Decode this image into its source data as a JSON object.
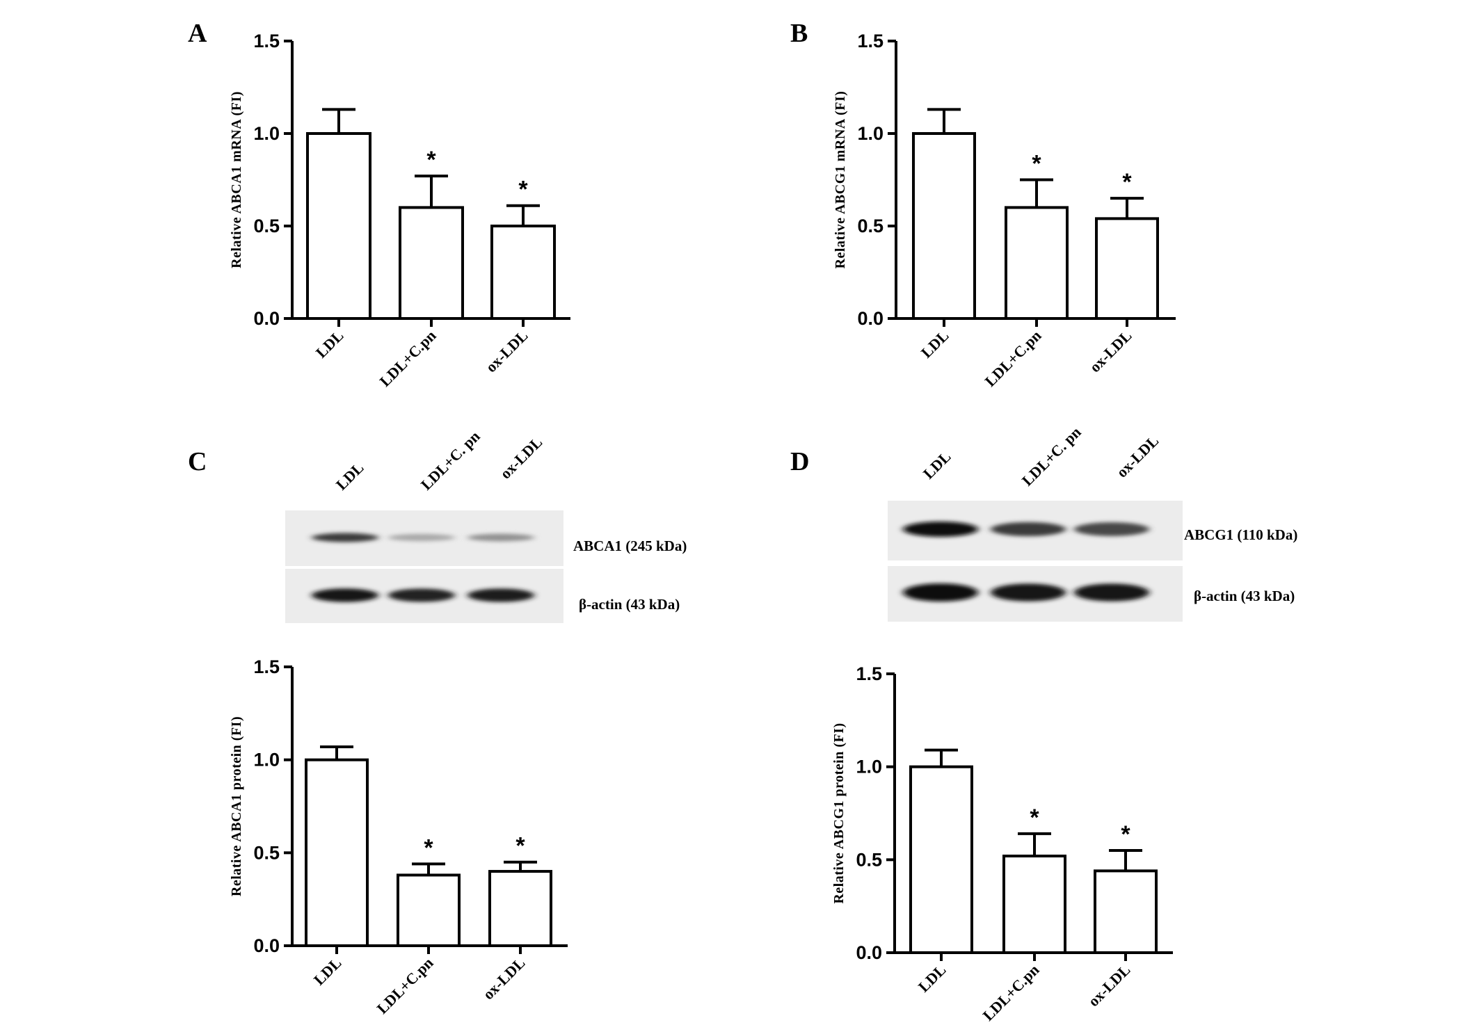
{
  "panels": [
    {
      "letter": "A"
    },
    {
      "letter": "B"
    },
    {
      "letter": "C"
    },
    {
      "letter": "D"
    }
  ],
  "chart_data": [
    {
      "panel": "A",
      "type": "bar",
      "title": "",
      "ylabel": "Relative ABCA1 mRNA (FI)",
      "xlabel": "",
      "ylim": [
        0,
        1.5
      ],
      "yticks": [
        "0.0",
        "0.5",
        "1.0",
        "1.5"
      ],
      "categories": [
        "LDL",
        "LDL+C.pn",
        "ox-LDL"
      ],
      "values": [
        1.0,
        0.6,
        0.5
      ],
      "errors": [
        0.13,
        0.17,
        0.11
      ],
      "significance": [
        "",
        "*",
        "*"
      ]
    },
    {
      "panel": "B",
      "type": "bar",
      "title": "",
      "ylabel": "Relative ABCG1 mRNA (FI)",
      "xlabel": "",
      "ylim": [
        0,
        1.5
      ],
      "yticks": [
        "0.0",
        "0.5",
        "1.0",
        "1.5"
      ],
      "categories": [
        "LDL",
        "LDL+C.pn",
        "ox-LDL"
      ],
      "values": [
        1.0,
        0.6,
        0.54
      ],
      "errors": [
        0.13,
        0.15,
        0.11
      ],
      "significance": [
        "",
        "*",
        "*"
      ]
    },
    {
      "panel": "C",
      "type": "bar",
      "title": "",
      "ylabel": "Relative ABCA1  protein (FI)",
      "xlabel": "",
      "ylim": [
        0,
        1.5
      ],
      "yticks": [
        "0.0",
        "0.5",
        "1.0",
        "1.5"
      ],
      "categories": [
        "LDL",
        "LDL+C.pn",
        "ox-LDL"
      ],
      "values": [
        1.0,
        0.38,
        0.4
      ],
      "errors": [
        0.07,
        0.06,
        0.05
      ],
      "significance": [
        "",
        "*",
        "*"
      ]
    },
    {
      "panel": "D",
      "type": "bar",
      "title": "",
      "ylabel": "Relative ABCG1  protein (FI)",
      "xlabel": "",
      "ylim": [
        0,
        1.5
      ],
      "yticks": [
        "0.0",
        "0.5",
        "1.0",
        "1.5"
      ],
      "categories": [
        "LDL",
        "LDL+C.pn",
        "ox-LDL"
      ],
      "values": [
        1.0,
        0.52,
        0.44
      ],
      "errors": [
        0.09,
        0.12,
        0.11
      ],
      "significance": [
        "",
        "*",
        "*"
      ]
    }
  ],
  "blots": [
    {
      "panel": "C",
      "lanes": [
        "LDL",
        "LDL+C. pn",
        "ox-LDL"
      ],
      "rows": [
        {
          "label": "ABCA1 (245 kDa)",
          "band_intensity": [
            0.8,
            0.35,
            0.45
          ]
        },
        {
          "label": "β-actin (43 kDa)",
          "band_intensity": [
            0.95,
            0.9,
            0.92
          ]
        }
      ]
    },
    {
      "panel": "D",
      "lanes": [
        "LDL",
        "LDL+C. pn",
        "ox-LDL"
      ],
      "rows": [
        {
          "label": "ABCG1 (110 kDa)",
          "band_intensity": [
            1.0,
            0.8,
            0.75
          ]
        },
        {
          "label": "β-actin (43 kDa)",
          "band_intensity": [
            1.0,
            0.95,
            0.95
          ]
        }
      ]
    }
  ]
}
